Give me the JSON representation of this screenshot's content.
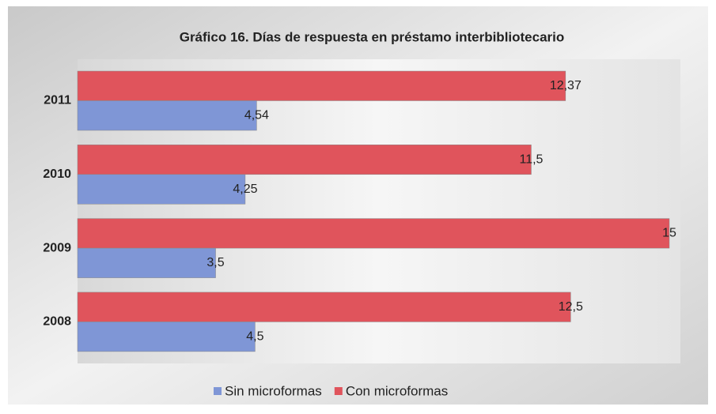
{
  "chart_data": {
    "type": "bar",
    "orientation": "horizontal",
    "title": "Gráfico 16. Días de respuesta en préstamo interbibliotecario",
    "categories": [
      "2011",
      "2010",
      "2009",
      "2008"
    ],
    "series": [
      {
        "name": "Sin microformas",
        "color": "#7f96d6",
        "values": [
          4.54,
          4.25,
          3.5,
          4.5
        ],
        "value_labels": [
          "4,54",
          "4,25",
          "3,5",
          "4,5"
        ]
      },
      {
        "name": "Con microformas",
        "color": "#e0545c",
        "values": [
          12.37,
          11.5,
          15,
          12.5
        ],
        "value_labels": [
          "12,37",
          "11,5",
          "15",
          "12,5"
        ]
      }
    ],
    "legend": "bottom"
  }
}
